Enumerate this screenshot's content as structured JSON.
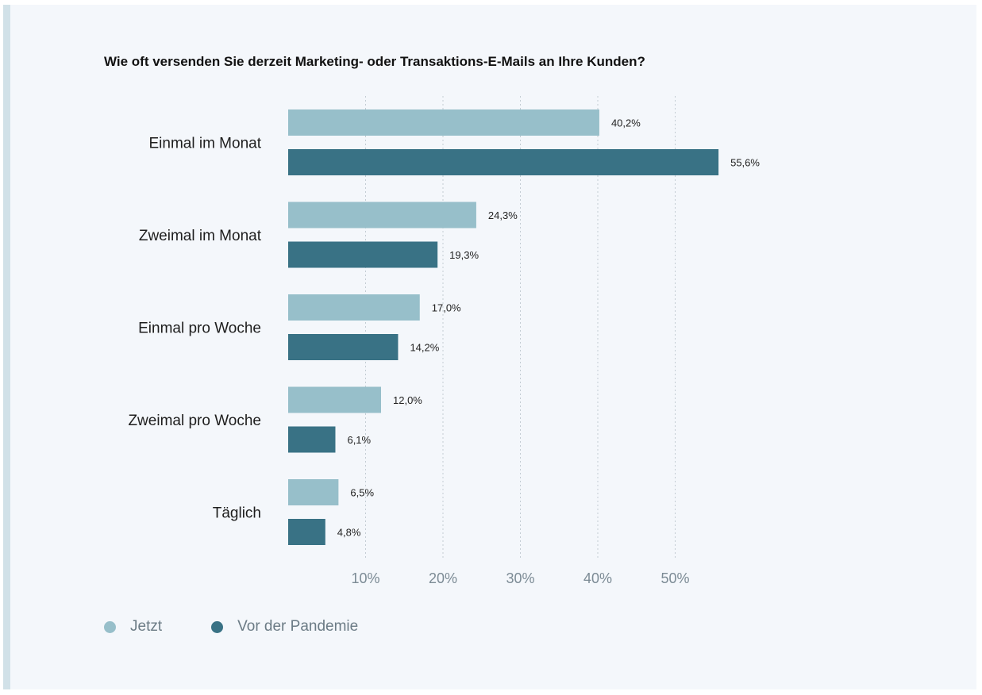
{
  "chart_data": {
    "type": "bar",
    "orientation": "horizontal",
    "title": "Wie oft versenden Sie derzeit Marketing- oder Transaktions-E-Mails an Ihre Kunden?",
    "categories": [
      "Einmal im Monat",
      "Zweimal im Monat",
      "Einmal pro Woche",
      "Zweimal pro Woche",
      "Täglich"
    ],
    "series": [
      {
        "name": "Jetzt",
        "color": "#97bfca",
        "values": [
          40.2,
          24.3,
          17.0,
          12.0,
          6.5
        ],
        "labels": [
          "40,2%",
          "24,3%",
          "17,0%",
          "12,0%",
          "6,5%"
        ]
      },
      {
        "name": "Vor der Pandemie",
        "color": "#397285",
        "values": [
          55.6,
          19.3,
          14.2,
          6.1,
          4.8
        ],
        "labels": [
          "55,6%",
          "19,3%",
          "14,2%",
          "6,1%",
          "4,8%"
        ]
      }
    ],
    "xlim": [
      0,
      60
    ],
    "xticks": [
      10,
      20,
      30,
      40,
      50
    ],
    "xtick_labels": [
      "10%",
      "20%",
      "30%",
      "40%",
      "50%"
    ],
    "grid": "vertical dotted",
    "legend": "bottom-left"
  }
}
